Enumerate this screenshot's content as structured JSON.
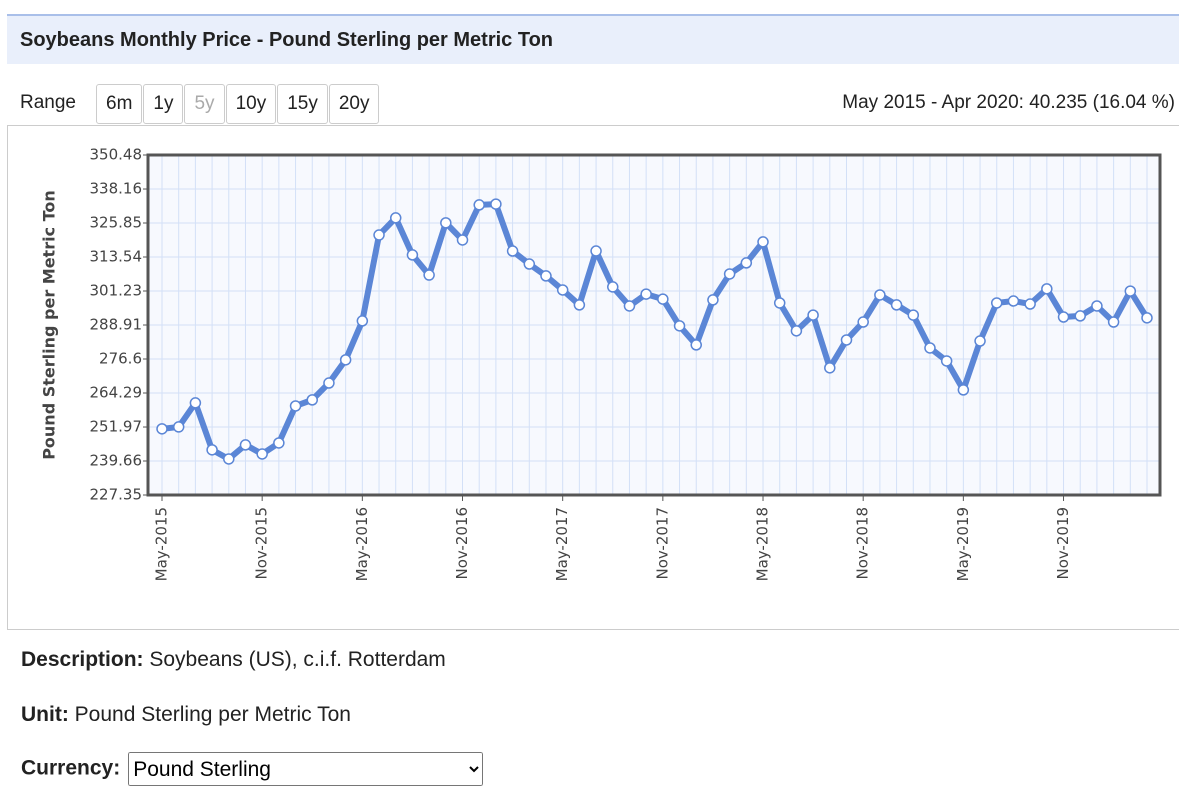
{
  "header": {
    "title": "Soybeans Monthly Price - Pound Sterling per Metric Ton"
  },
  "range": {
    "label": "Range",
    "buttons": [
      "6m",
      "1y",
      "5y",
      "10y",
      "15y",
      "20y"
    ],
    "selected": "5y"
  },
  "summary": "May 2015 - Apr 2020: 40.235 (16.04 %)",
  "chart_data": {
    "type": "line",
    "y_label": "Pound Sterling per Metric Ton",
    "categories": [
      "May-2015",
      null,
      null,
      null,
      null,
      null,
      "Nov-2015",
      null,
      null,
      null,
      null,
      null,
      "May-2016",
      null,
      null,
      null,
      null,
      null,
      "Nov-2016",
      null,
      null,
      null,
      null,
      null,
      "May-2017",
      null,
      null,
      null,
      null,
      null,
      "Nov-2017",
      null,
      null,
      null,
      null,
      null,
      "May-2018",
      null,
      null,
      null,
      null,
      null,
      "Nov-2018",
      null,
      null,
      null,
      null,
      null,
      "May-2019",
      null,
      null,
      null,
      null,
      null,
      "Nov-2019",
      null,
      null,
      null,
      null,
      null
    ],
    "values": [
      251.3,
      252.0,
      260.7,
      243.7,
      240.4,
      245.5,
      242.2,
      246.2,
      259.6,
      261.8,
      267.9,
      276.3,
      290.4,
      321.5,
      327.7,
      314.3,
      307.0,
      325.9,
      319.7,
      332.4,
      332.7,
      315.7,
      311.0,
      306.7,
      301.6,
      296.2,
      315.7,
      302.7,
      295.8,
      300.1,
      298.3,
      288.6,
      281.7,
      298.0,
      307.4,
      311.4,
      319.0,
      296.9,
      286.8,
      292.5,
      273.4,
      283.5,
      290.0,
      299.8,
      296.2,
      292.5,
      280.6,
      275.9,
      265.4,
      283.1,
      296.9,
      297.6,
      296.5,
      302.0,
      291.8,
      292.2,
      295.8,
      290.0,
      301.2,
      291.5
    ],
    "color": "#5b86d6",
    "ylim": [
      227.35,
      350.48
    ],
    "yticks": [
      227.35,
      239.66,
      251.97,
      264.29,
      276.6,
      288.91,
      301.23,
      313.54,
      325.85,
      338.16,
      350.48
    ],
    "grid": true
  },
  "details": {
    "description_label": "Description:",
    "description": "Soybeans (US), c.i.f. Rotterdam",
    "unit_label": "Unit:",
    "unit": "Pound Sterling per Metric Ton",
    "currency_label": "Currency:",
    "currency": "Pound Sterling"
  }
}
